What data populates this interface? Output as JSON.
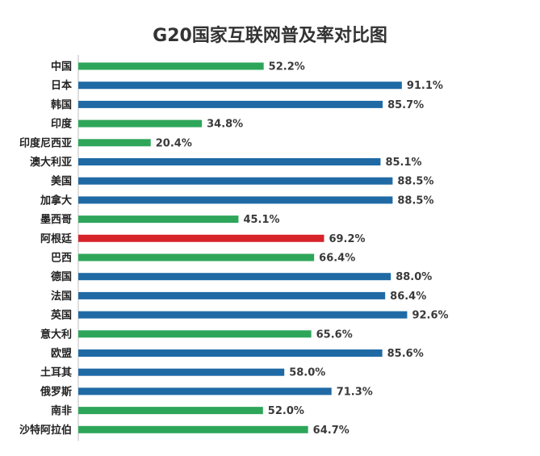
{
  "chart_data": {
    "type": "bar",
    "orientation": "horizontal",
    "title": "G20国家互联网普及率对比图",
    "categories": [
      "中国",
      "日本",
      "韩国",
      "印度",
      "印度尼西亚",
      "澳大利亚",
      "美国",
      "加拿大",
      "墨西哥",
      "阿根廷",
      "巴西",
      "德国",
      "法国",
      "英国",
      "意大利",
      "欧盟",
      "土耳其",
      "俄罗斯",
      "南非",
      "沙特阿拉伯"
    ],
    "values": [
      52.2,
      91.1,
      85.7,
      34.8,
      20.4,
      85.1,
      88.5,
      88.5,
      45.1,
      69.2,
      66.4,
      88.0,
      86.4,
      92.6,
      65.6,
      85.6,
      58.0,
      71.3,
      52.0,
      64.7
    ],
    "value_labels": [
      "52.2%",
      "91.1%",
      "85.7%",
      "34.8%",
      "20.4%",
      "85.1%",
      "88.5%",
      "88.5%",
      "45.1%",
      "69.2%",
      "66.4%",
      "88.0%",
      "86.4%",
      "92.6%",
      "65.6%",
      "85.6%",
      "58.0%",
      "71.3%",
      "52.0%",
      "64.7%"
    ],
    "bar_colors": [
      "#2ea65a",
      "#1f6aa5",
      "#1f6aa5",
      "#2ea65a",
      "#2ea65a",
      "#1f6aa5",
      "#1f6aa5",
      "#1f6aa5",
      "#2ea65a",
      "#d7232a",
      "#2ea65a",
      "#1f6aa5",
      "#1f6aa5",
      "#1f6aa5",
      "#2ea65a",
      "#1f6aa5",
      "#1f6aa5",
      "#1f6aa5",
      "#2ea65a",
      "#2ea65a"
    ],
    "xlim": [
      0,
      100
    ],
    "xlabel": "",
    "ylabel": "",
    "grid": false,
    "legend": "none"
  }
}
